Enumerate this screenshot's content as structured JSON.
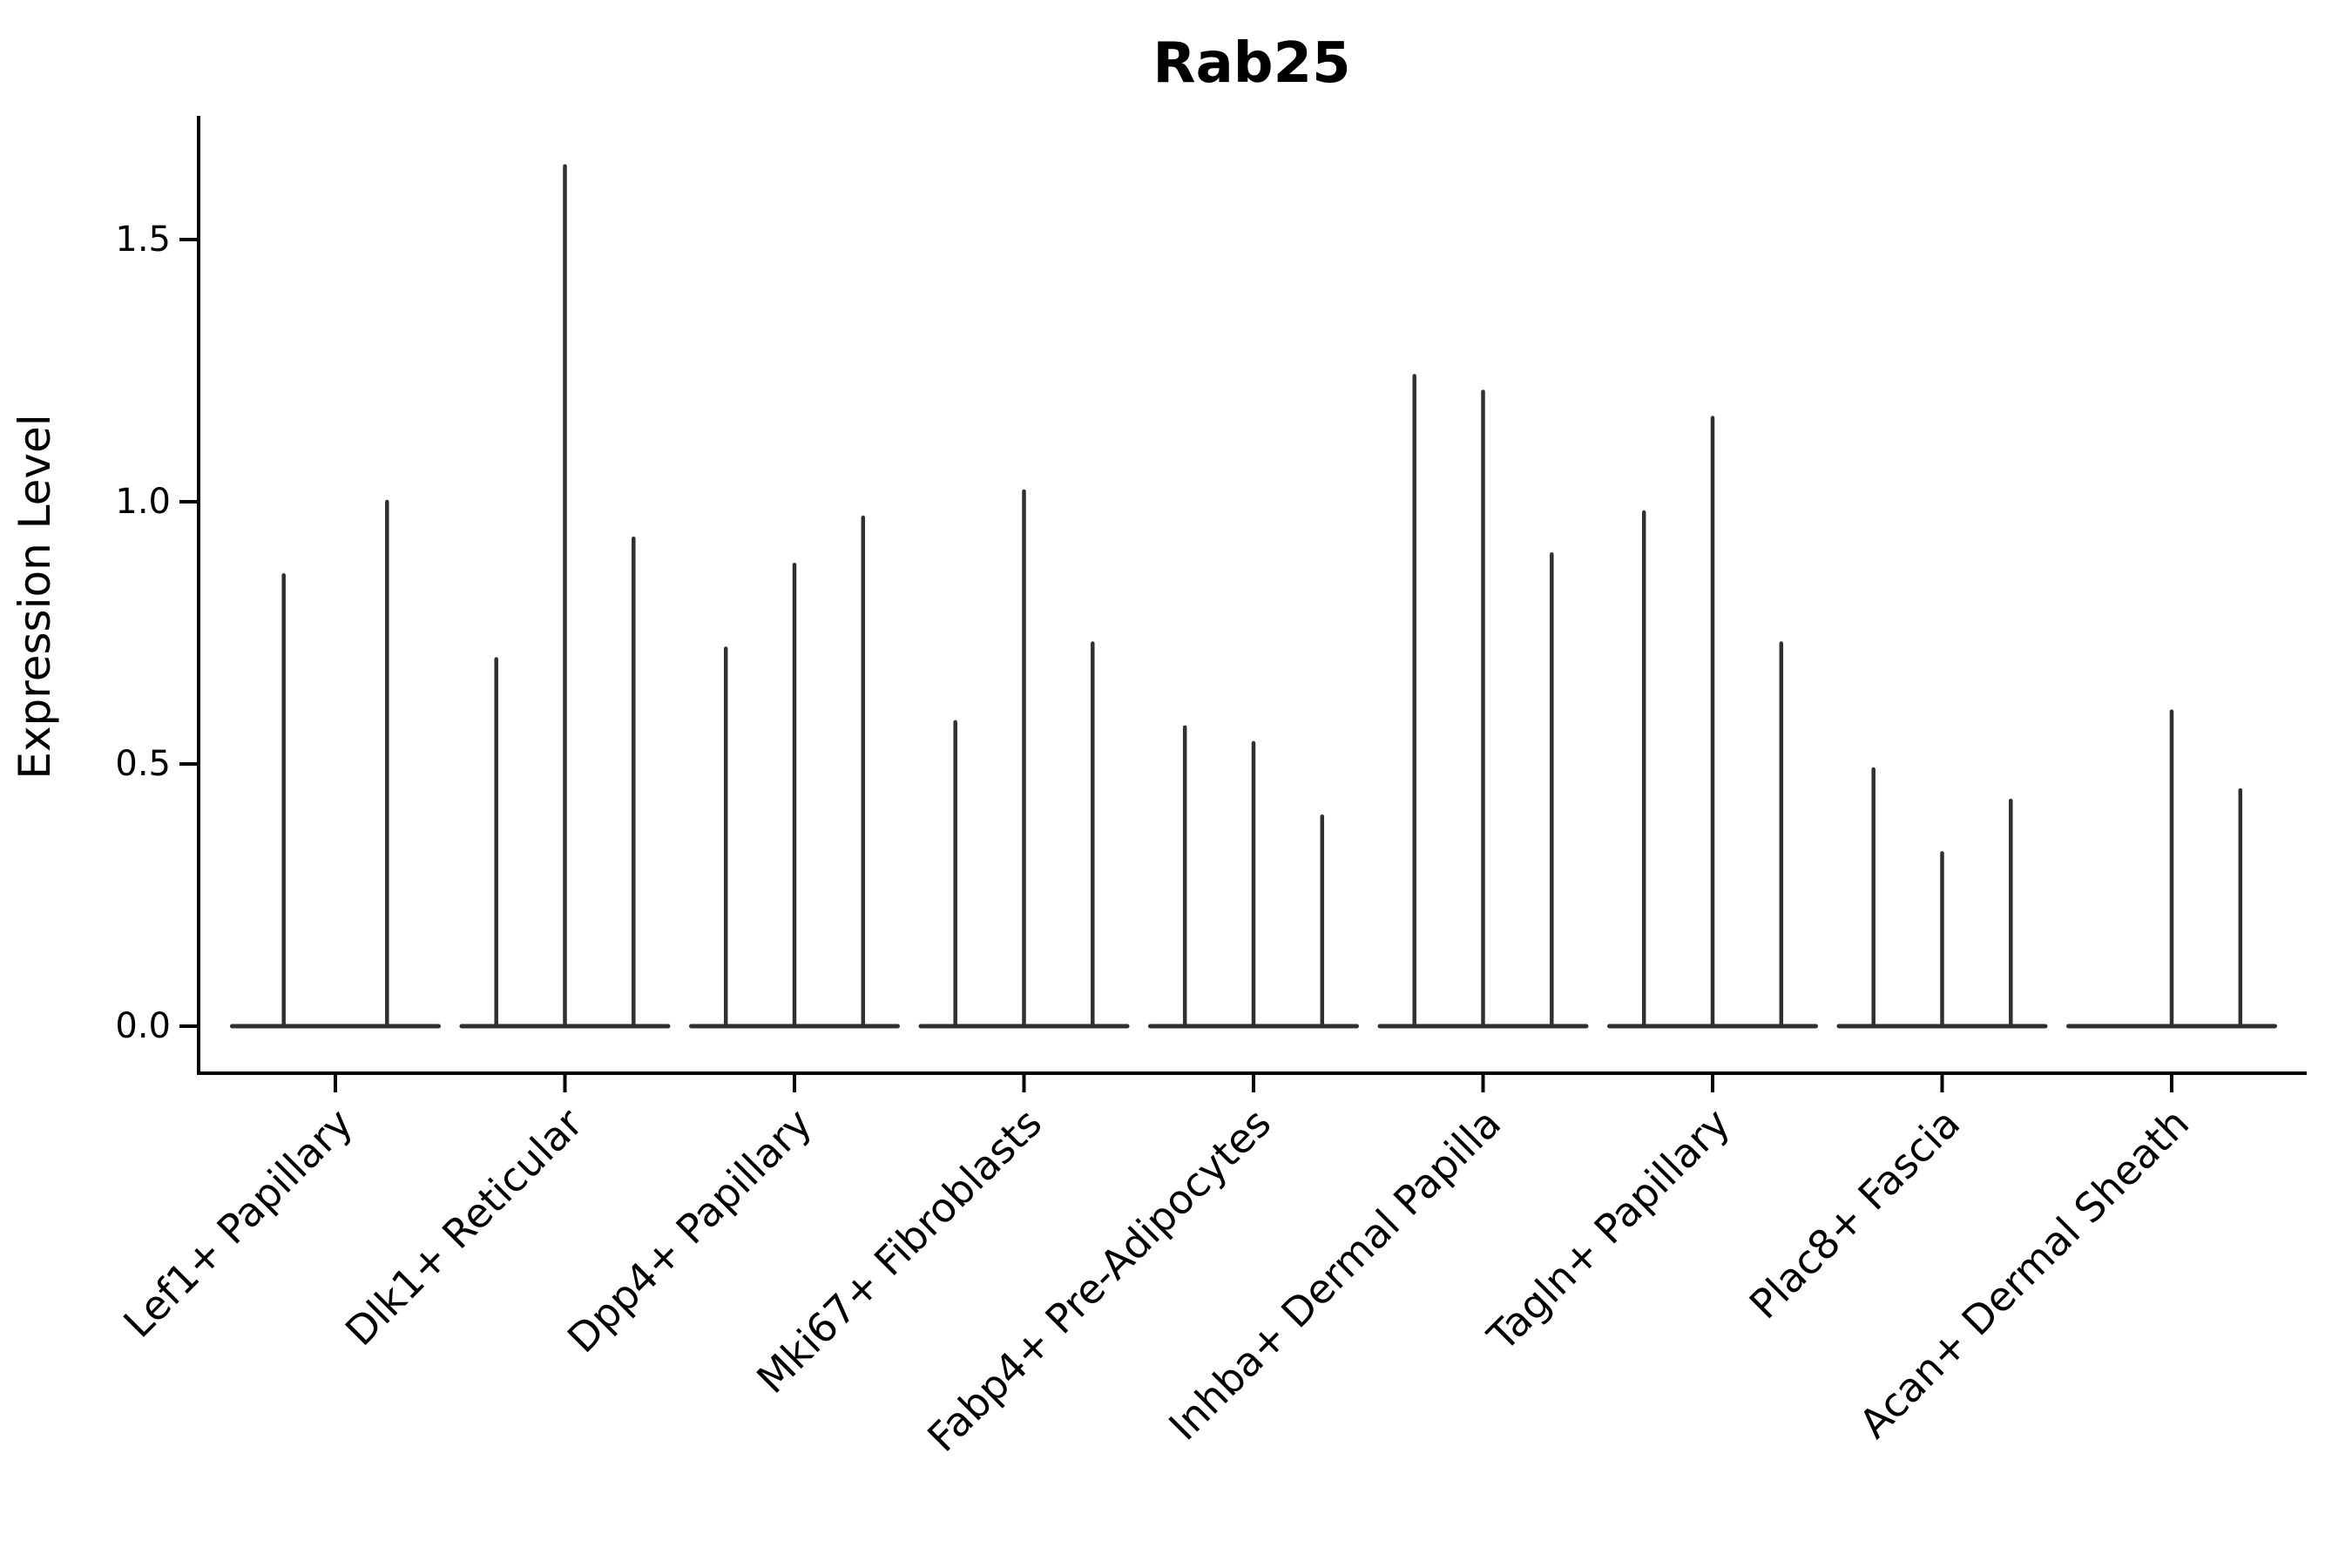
{
  "chart_data": {
    "type": "violin",
    "title": "Rab25",
    "ylabel": "Expression Level",
    "xlabel": "",
    "yticks": [
      {
        "value": 0.0,
        "label": "0.0"
      },
      {
        "value": 0.5,
        "label": "0.5"
      },
      {
        "value": 1.0,
        "label": "1.0"
      },
      {
        "value": 1.5,
        "label": "1.5"
      }
    ],
    "ylim": [
      -0.09,
      1.73
    ],
    "grid": false,
    "legend": "none",
    "note": "Needle-thin violins (expression spikes) with flat bases at zero; 2-3 violins per category",
    "categories": [
      "Lef1+ Papillary",
      "Dlk1+ Reticular",
      "Dpp4+ Papillary",
      "Mki67+ Fibroblasts",
      "Fabp4+ Pre-Adipocytes",
      "Inhba+ Dermal Papilla",
      "Tagln+ Papillary",
      "Plac8+ Fascia",
      "Acan+ Dermal Sheath"
    ],
    "series": [
      {
        "category": "Lef1+ Papillary",
        "spike_maxima": [
          0.86,
          1.0
        ]
      },
      {
        "category": "Dlk1+ Reticular",
        "spike_maxima": [
          0.7,
          1.64,
          0.93
        ]
      },
      {
        "category": "Dpp4+ Papillary",
        "spike_maxima": [
          0.72,
          0.88,
          0.97
        ]
      },
      {
        "category": "Mki67+ Fibroblasts",
        "spike_maxima": [
          0.58,
          1.02,
          0.73
        ]
      },
      {
        "category": "Fabp4+ Pre-Adipocytes",
        "spike_maxima": [
          0.57,
          0.54,
          0.4
        ]
      },
      {
        "category": "Inhba+ Dermal Papilla",
        "spike_maxima": [
          1.24,
          1.21,
          0.9
        ]
      },
      {
        "category": "Tagln+ Papillary",
        "spike_maxima": [
          0.98,
          1.16,
          0.73
        ]
      },
      {
        "category": "Plac8+ Fascia",
        "spike_maxima": [
          0.49,
          0.33,
          0.43
        ]
      },
      {
        "category": "Acan+ Dermal Sheath",
        "spike_maxima": [
          0.0,
          0.6,
          0.45
        ]
      }
    ],
    "colors": {
      "violin_stroke": "#303030",
      "axis": "#000000",
      "background": "#ffffff",
      "text": "#000000"
    }
  }
}
